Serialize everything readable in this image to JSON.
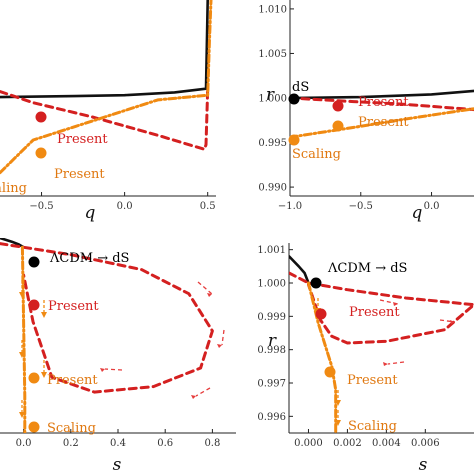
{
  "chart_data": [
    {
      "panel": "top-left",
      "type": "line",
      "xlabel": "q",
      "ylabel": "",
      "xlim": [
        -0.75,
        0.55
      ],
      "ylim": [
        0.9895,
        1.0105
      ],
      "xticks": [
        -0.5,
        0.0,
        0.5
      ],
      "xtick_labels": [
        "−0.5",
        "0.0",
        "0.5"
      ],
      "series": [
        {
          "color": "#111111",
          "style": "solid",
          "x": [
            -0.75,
            -0.3,
            0.0,
            0.3,
            0.49,
            0.5
          ],
          "y": [
            1.0001,
            1.0002,
            1.0003,
            1.0006,
            1.001,
            1.0105
          ]
        },
        {
          "color": "#d42020",
          "style": "dashed",
          "x": [
            -0.75,
            -0.55,
            -0.2,
            0.2,
            0.48,
            0.49,
            0.5
          ],
          "y": [
            1.0007,
            0.9995,
            0.998,
            0.996,
            0.9945,
            0.995,
            1.001
          ]
        },
        {
          "color": "#f08a12",
          "style": "dash-dot",
          "x": [
            -0.75,
            -0.55,
            -0.2,
            0.2,
            0.5,
            0.51,
            0.52
          ],
          "y": [
            0.992,
            0.9955,
            0.9975,
            0.9998,
            1.0003,
            1.006,
            1.0105
          ]
        }
      ],
      "points": [
        {
          "label": "Present",
          "x": -0.55,
          "y": 0.99955,
          "color": "#d42020"
        },
        {
          "label": "Present",
          "x": -0.55,
          "y": 0.9955,
          "color": "#f08a12"
        }
      ],
      "annotations": [
        {
          "text": "Present",
          "color": "#d42020"
        },
        {
          "text": "Present",
          "color": "#e07810"
        },
        {
          "text": "Scaling",
          "color": "#e07810"
        }
      ]
    },
    {
      "panel": "top-right",
      "type": "line",
      "xlabel": "q",
      "ylabel": "r",
      "xlim": [
        -1.0,
        0.3
      ],
      "ylim": [
        0.989,
        1.011
      ],
      "xticks": [
        -1.0,
        -0.5,
        0.0
      ],
      "xtick_labels": [
        "−1.0",
        "−0.5",
        "0.0"
      ],
      "yticks": [
        0.99,
        0.995,
        1.0,
        1.005,
        1.01
      ],
      "ytick_labels": [
        "0.990",
        "0.995",
        "1.000",
        "1.005",
        "1.010"
      ],
      "series": [
        {
          "color": "#111111",
          "style": "solid",
          "x": [
            -1.0,
            -0.5,
            0.0,
            0.3
          ],
          "y": [
            1.0,
            1.0001,
            1.0004,
            1.0008
          ]
        },
        {
          "color": "#d42020",
          "style": "dashed",
          "x": [
            -1.0,
            -0.55,
            -0.2,
            0.3
          ],
          "y": [
            1.0,
            0.9996,
            0.9993,
            0.9987
          ]
        },
        {
          "color": "#f08a12",
          "style": "dash-dot",
          "x": [
            -1.0,
            -0.55,
            -0.2,
            0.3
          ],
          "y": [
            0.9956,
            0.9967,
            0.9976,
            0.9988
          ]
        }
      ],
      "points": [
        {
          "label": "dS",
          "x": -1.0,
          "y": 1.0,
          "color": "#000000"
        },
        {
          "label": "Present",
          "x": -0.55,
          "y": 0.9996,
          "color": "#d42020"
        },
        {
          "label": "Present",
          "x": -0.55,
          "y": 0.9967,
          "color": "#f08a12"
        },
        {
          "label": "",
          "x": -1.0,
          "y": 0.9956,
          "color": "#f08a12"
        }
      ],
      "annotations": [
        {
          "text": "dS",
          "color": "#000000"
        },
        {
          "text": "Present",
          "color": "#d42020"
        },
        {
          "text": "Present",
          "color": "#e07810"
        },
        {
          "text": "Scaling",
          "color": "#e07810"
        }
      ]
    },
    {
      "panel": "bottom-left",
      "type": "line",
      "xlabel": "s",
      "ylabel": "",
      "xlim": [
        -0.1,
        0.9
      ],
      "xticks": [
        0.0,
        0.2,
        0.4,
        0.6,
        0.8
      ],
      "xtick_labels": [
        "0.0",
        "0.2",
        "0.4",
        "0.6",
        "0.8"
      ],
      "series": [
        {
          "color": "#111111",
          "style": "solid",
          "x": [
            -0.1,
            -0.05,
            -0.02,
            0.0
          ],
          "y": [
            1.05,
            1.03,
            1.015,
            1.0
          ]
        },
        {
          "color": "#d42020",
          "style": "dashed",
          "x": [
            -0.1,
            0.0,
            0.2,
            0.5,
            0.7,
            0.8,
            0.75,
            0.55,
            0.3,
            0.12,
            0.04,
            0.0
          ],
          "y": [
            1.02,
            1.0,
            0.96,
            0.88,
            0.75,
            0.55,
            0.35,
            0.25,
            0.22,
            0.3,
            0.6,
            0.85
          ]
        },
        {
          "color": "#f08a12",
          "style": "dash-dot",
          "x": [
            -0.005,
            0.0,
            0.005,
            0.005
          ],
          "y": [
            1.0,
            0.6,
            0.2,
            0.0
          ]
        }
      ],
      "points": [
        {
          "label": "ΛCDM → dS",
          "x": 0.0,
          "y": 1.0,
          "color": "#000000"
        },
        {
          "label": "Present",
          "x": 0.0,
          "y": 0.75,
          "color": "#d42020"
        },
        {
          "label": "Present",
          "x": 0.0,
          "y": 0.3,
          "color": "#f08a12"
        },
        {
          "label": "Scaling",
          "x": 0.0,
          "y": 0.05,
          "color": "#f08a12"
        }
      ],
      "annotations": [
        {
          "text": "ΛCDM → dS",
          "color": "#000000"
        },
        {
          "text": "Present",
          "color": "#d42020"
        },
        {
          "text": "Present",
          "color": "#e07810"
        },
        {
          "text": "Scaling",
          "color": "#e07810"
        }
      ]
    },
    {
      "panel": "bottom-right",
      "type": "line",
      "xlabel": "s",
      "ylabel": "r",
      "xlim": [
        -0.001,
        0.0085
      ],
      "ylim": [
        0.9955,
        1.0012
      ],
      "xticks": [
        0.0,
        0.002,
        0.004,
        0.006
      ],
      "xtick_labels": [
        "0.000",
        "0.002",
        "0.004",
        "0.006"
      ],
      "yticks": [
        0.996,
        0.997,
        0.998,
        0.999,
        1.0,
        1.001
      ],
      "ytick_labels": [
        "0.996",
        "0.997",
        "0.998",
        "0.999",
        "1.000",
        "1.001"
      ],
      "series": [
        {
          "color": "#111111",
          "style": "solid",
          "x": [
            -0.001,
            -0.0005,
            -0.0002,
            0.0
          ],
          "y": [
            1.0008,
            1.0005,
            1.0003,
            1.0
          ]
        },
        {
          "color": "#d42020",
          "style": "dashed",
          "x": [
            -0.001,
            0.0,
            0.002,
            0.005,
            0.0085,
            0.007,
            0.004,
            0.002,
            0.0012,
            0.0006,
            0.0
          ],
          "y": [
            1.0003,
            1.0,
            0.9998,
            0.99955,
            0.99935,
            0.9986,
            0.99825,
            0.9982,
            0.9984,
            0.9989,
            0.99995
          ]
        },
        {
          "color": "#f08a12",
          "style": "dash-dot",
          "x": [
            0.0,
            0.0005,
            0.0012,
            0.0014,
            0.0014
          ],
          "y": [
            1.0,
            0.9988,
            0.9975,
            0.9968,
            0.9955
          ]
        }
      ],
      "points": [
        {
          "label": "ΛCDM → dS",
          "x": 0.0,
          "y": 1.0,
          "color": "#000000"
        },
        {
          "label": "Present",
          "x": 0.0003,
          "y": 0.99905,
          "color": "#d42020"
        },
        {
          "label": "Present",
          "x": 0.0013,
          "y": 0.99745,
          "color": "#f08a12"
        }
      ],
      "annotations": [
        {
          "text": "ΛCDM → dS",
          "color": "#000000"
        },
        {
          "text": "Present",
          "color": "#d42020"
        },
        {
          "text": "Present",
          "color": "#e07810"
        },
        {
          "text": "Scaling",
          "color": "#e07810"
        }
      ]
    }
  ]
}
